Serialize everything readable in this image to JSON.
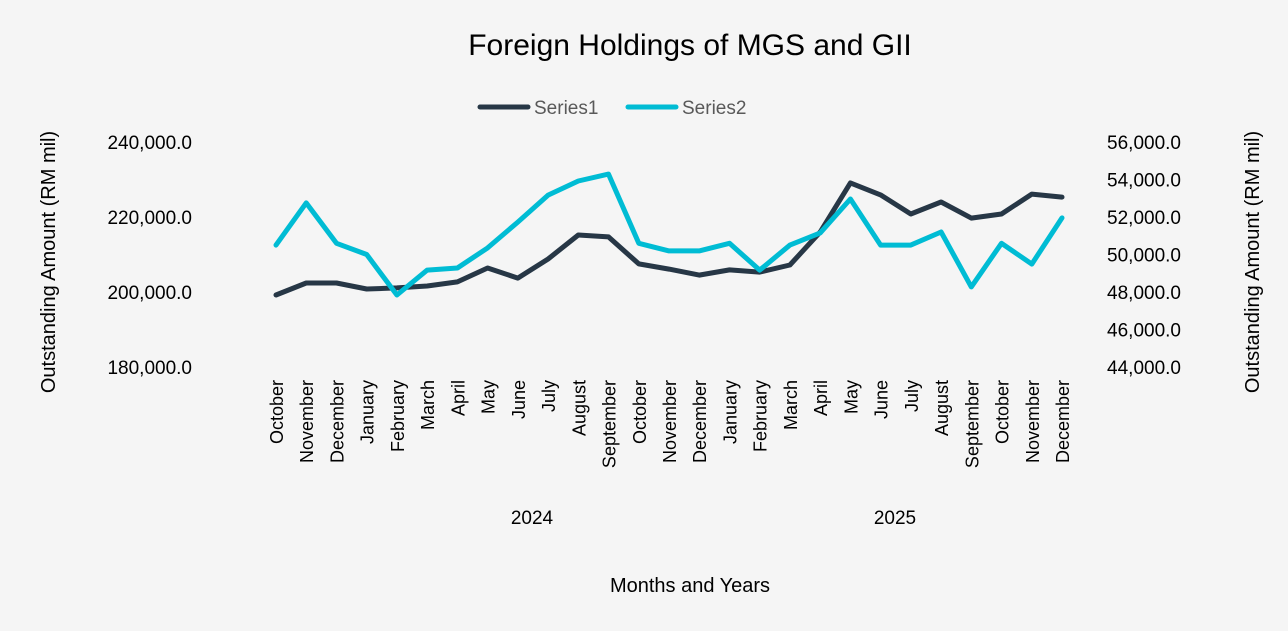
{
  "chart_data": {
    "type": "line",
    "title": "Foreign Holdings of MGS and GII",
    "xlabel": "Months and Years",
    "ylabel": "Outstanding Amount (RM mil)",
    "y2label": "Outstanding Amount (RM mil)",
    "ylim": [
      180000,
      240000
    ],
    "y2lim": [
      44000,
      56000
    ],
    "yticks": [
      "180,000.0",
      "200,000.0",
      "220,000.0",
      "240,000.0"
    ],
    "y2ticks": [
      "44,000.0",
      "46,000.0",
      "48,000.0",
      "50,000.0",
      "52,000.0",
      "54,000.0",
      "56,000.0"
    ],
    "grid": false,
    "legend_position": "top",
    "categories": [
      "October",
      "November",
      "December",
      "January",
      "February",
      "March",
      "April",
      "May",
      "June",
      "July",
      "August",
      "September",
      "October",
      "November",
      "December",
      "January",
      "February",
      "March",
      "April",
      "May",
      "June",
      "July",
      "August",
      "September",
      "October",
      "November",
      "December"
    ],
    "year_labels": [
      "2024",
      "2025"
    ],
    "series": [
      {
        "name": "Series1",
        "axis": "left",
        "color": "#273746",
        "values": [
          199200,
          202400,
          202400,
          200800,
          201100,
          201600,
          202700,
          206400,
          203700,
          208800,
          215200,
          214700,
          207500,
          206100,
          204500,
          205900,
          205300,
          207200,
          216000,
          229100,
          225900,
          220800,
          224000,
          219700,
          220800,
          226100,
          225300
        ]
      },
      {
        "name": "Series2",
        "axis": "right",
        "color": "#00bcd4",
        "values": [
          50500,
          52750,
          50600,
          50000,
          47840,
          49170,
          49280,
          50350,
          51730,
          53170,
          53920,
          54290,
          50600,
          50190,
          50190,
          50600,
          49170,
          50500,
          51150,
          52960,
          50500,
          50500,
          51200,
          48270,
          50600,
          49490,
          51950
        ]
      }
    ]
  }
}
